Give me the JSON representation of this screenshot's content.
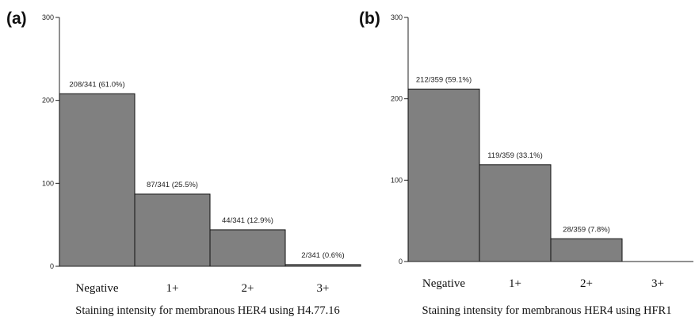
{
  "chart_data": [
    {
      "type": "bar",
      "panel_label": "(a)",
      "categories": [
        "Negative",
        "1+",
        "2+",
        "3+"
      ],
      "values": [
        208,
        87,
        44,
        2
      ],
      "bar_labels": [
        "208/341 (61.0%)",
        "87/341 (25.5%)",
        "44/341 (12.9%)",
        "2/341 (0.6%)"
      ],
      "xlabel": "Staining intensity for membranous HER4 using H4.77.16",
      "ylabel": "",
      "ylim": [
        0,
        300
      ],
      "yticks": [
        "0",
        "100",
        "200",
        "300"
      ],
      "bar_color": "#808080",
      "grid": false
    },
    {
      "type": "bar",
      "panel_label": "(b)",
      "categories": [
        "Negative",
        "1+",
        "2+",
        "3+"
      ],
      "values": [
        212,
        119,
        28,
        0
      ],
      "bar_labels": [
        "212/359 (59.1%)",
        "119/359 (33.1%)",
        "28/359 (7.8%)",
        ""
      ],
      "xlabel": "Staining intensity for membranous HER4 using HFR1",
      "ylabel": "",
      "ylim": [
        0,
        300
      ],
      "yticks": [
        "0",
        "100",
        "200",
        "300"
      ],
      "bar_color": "#808080",
      "grid": false
    }
  ]
}
